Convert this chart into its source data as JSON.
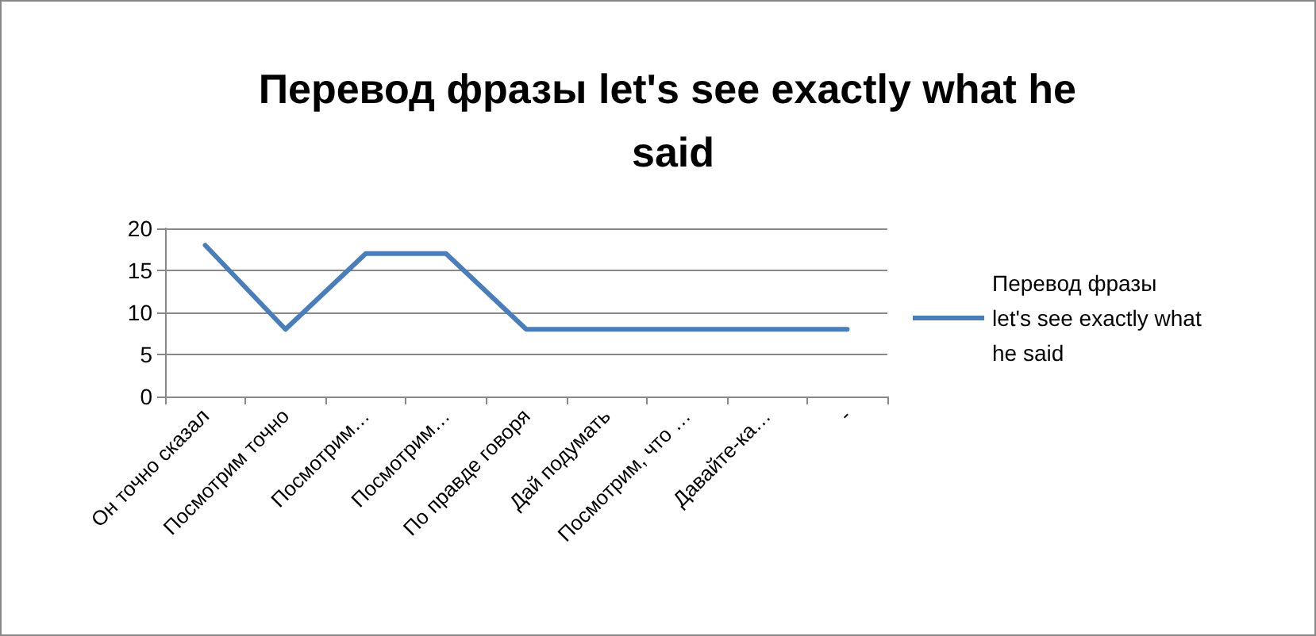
{
  "chart_data": {
    "type": "line",
    "title": "Перевод фразы let's see exactly what he said",
    "categories": [
      "Он точно сказал",
      "Посмотрим точно",
      "Посмотрим…",
      "Посмотрим…",
      "По правде говоря",
      "Дай подумать",
      "Посмотрим, что …",
      "Давайте-ка…",
      "-"
    ],
    "series": [
      {
        "name": "Перевод фразы let's see exactly what he said",
        "color": "#4a7ebb",
        "values": [
          18,
          8,
          17,
          17,
          8,
          8,
          8,
          8,
          8
        ]
      }
    ],
    "ylim": [
      0,
      20
    ],
    "yticks": [
      0,
      5,
      10,
      15,
      20
    ],
    "grid": "y",
    "legend": "right",
    "marker": "none",
    "line_style": "solid"
  }
}
